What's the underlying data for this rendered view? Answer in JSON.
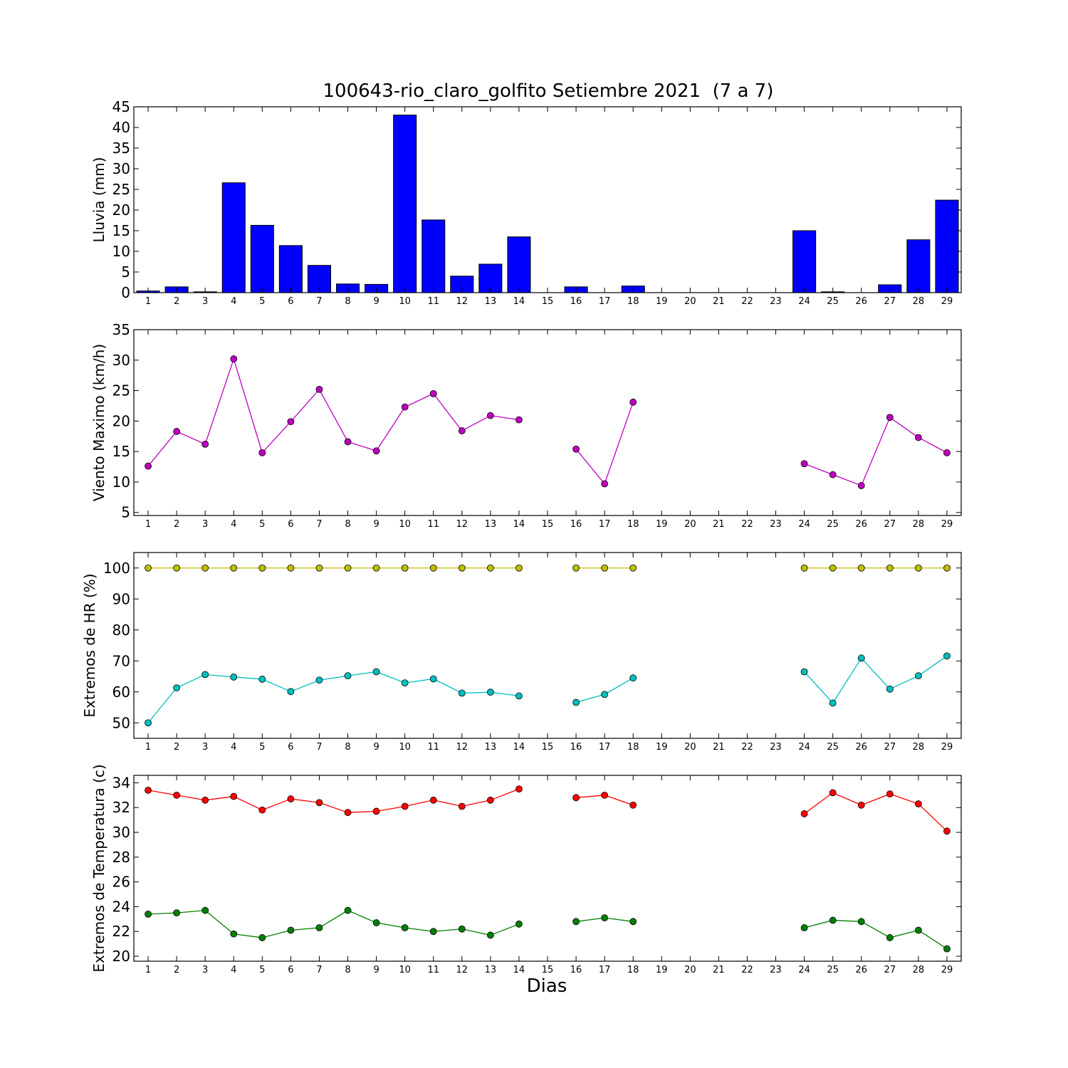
{
  "chart_data": [
    {
      "type": "bar",
      "title": "100643-rio_claro_golfito Setiembre 2021  (7 a 7)",
      "xlabel": "",
      "ylabel": "Lluvia (mm)",
      "ylim": [
        0,
        45
      ],
      "yticks": [
        0,
        5,
        10,
        15,
        20,
        25,
        30,
        35,
        40,
        45
      ],
      "categories": [
        1,
        2,
        3,
        4,
        5,
        6,
        7,
        8,
        9,
        10,
        11,
        12,
        13,
        14,
        15,
        16,
        17,
        18,
        19,
        20,
        21,
        22,
        23,
        24,
        25,
        26,
        27,
        28,
        29
      ],
      "values": [
        0.4,
        1.4,
        0.2,
        26.6,
        16.3,
        11.4,
        6.6,
        2.1,
        2.0,
        43.0,
        17.6,
        4.0,
        6.9,
        13.5,
        0,
        1.4,
        0,
        1.6,
        0,
        0,
        0,
        0,
        0,
        15.0,
        0.2,
        0,
        1.9,
        12.8,
        22.4
      ],
      "color": "#0000ff",
      "grid": false
    },
    {
      "type": "line",
      "ylabel": "Viento Maximo (km/h)",
      "ylim": [
        4.5,
        35
      ],
      "yticks": [
        5,
        10,
        15,
        20,
        25,
        30,
        35
      ],
      "categories": [
        1,
        2,
        3,
        4,
        5,
        6,
        7,
        8,
        9,
        10,
        11,
        12,
        13,
        14,
        15,
        16,
        17,
        18,
        19,
        20,
        21,
        22,
        23,
        24,
        25,
        26,
        27,
        28,
        29
      ],
      "series": [
        {
          "color": "#bf00bf",
          "values": [
            12.6,
            18.3,
            16.2,
            30.2,
            14.8,
            19.9,
            25.2,
            16.6,
            15.1,
            22.3,
            24.5,
            18.4,
            20.9,
            20.2,
            null,
            15.4,
            9.7,
            23.1,
            null,
            null,
            null,
            null,
            null,
            13.0,
            11.2,
            9.4,
            20.6,
            17.3,
            14.8
          ]
        }
      ],
      "grid": false
    },
    {
      "type": "line",
      "ylabel": "Extremos de HR (%)",
      "ylim": [
        45,
        105
      ],
      "yticks": [
        50,
        60,
        70,
        80,
        90,
        100
      ],
      "categories": [
        1,
        2,
        3,
        4,
        5,
        6,
        7,
        8,
        9,
        10,
        11,
        12,
        13,
        14,
        15,
        16,
        17,
        18,
        19,
        20,
        21,
        22,
        23,
        24,
        25,
        26,
        27,
        28,
        29
      ],
      "series": [
        {
          "color": "#bfbf00",
          "values": [
            100,
            100,
            100,
            100,
            100,
            100,
            100,
            100,
            100,
            100,
            100,
            100,
            100,
            100,
            null,
            100,
            100,
            100,
            null,
            null,
            null,
            null,
            null,
            100,
            100,
            100,
            100,
            100,
            100
          ]
        },
        {
          "color": "#00bfbf",
          "values": [
            50.0,
            61.3,
            65.6,
            64.8,
            64.1,
            60.1,
            63.8,
            65.2,
            66.5,
            62.9,
            64.2,
            59.6,
            59.9,
            58.7,
            null,
            56.6,
            59.2,
            64.5,
            null,
            null,
            null,
            null,
            null,
            66.5,
            56.4,
            70.9,
            60.9,
            65.2,
            71.6
          ]
        }
      ],
      "grid": false
    },
    {
      "type": "line",
      "ylabel": "Extremos de Temperatura (c)",
      "xlabel": "Dias",
      "ylim": [
        19.6,
        34.6
      ],
      "yticks": [
        20,
        22,
        24,
        26,
        28,
        30,
        32,
        34
      ],
      "categories": [
        1,
        2,
        3,
        4,
        5,
        6,
        7,
        8,
        9,
        10,
        11,
        12,
        13,
        14,
        15,
        16,
        17,
        18,
        19,
        20,
        21,
        22,
        23,
        24,
        25,
        26,
        27,
        28,
        29
      ],
      "series": [
        {
          "color": "#ff0000",
          "values": [
            33.4,
            33.0,
            32.6,
            32.9,
            31.8,
            32.7,
            32.4,
            31.6,
            31.7,
            32.1,
            32.6,
            32.1,
            32.6,
            33.5,
            null,
            32.8,
            33.0,
            32.2,
            null,
            null,
            null,
            null,
            null,
            31.5,
            33.2,
            32.2,
            33.1,
            32.3,
            30.1
          ]
        },
        {
          "color": "#008000",
          "values": [
            23.4,
            23.5,
            23.7,
            21.8,
            21.5,
            22.1,
            22.3,
            23.7,
            22.7,
            22.3,
            22.0,
            22.2,
            21.7,
            22.6,
            null,
            22.8,
            23.1,
            22.8,
            null,
            null,
            null,
            null,
            null,
            22.3,
            22.9,
            22.8,
            21.5,
            22.1,
            20.6
          ]
        }
      ],
      "grid": false
    }
  ]
}
